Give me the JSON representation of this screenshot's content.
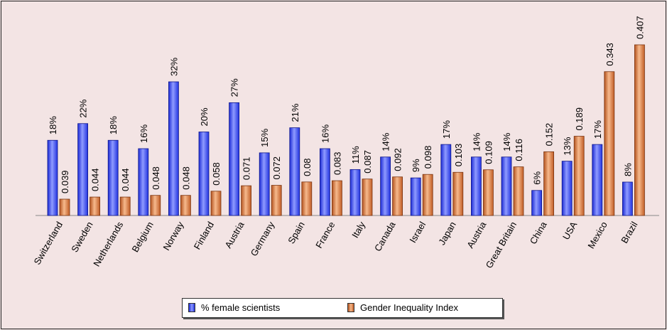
{
  "chart_data": {
    "type": "bar",
    "title": "",
    "xlabel": "",
    "ylabel": "",
    "categories": [
      "Switzerland",
      "Sweden",
      "Netherlands",
      "Belgium",
      "Norway",
      "Finland",
      "Austria",
      "Germany",
      "Spain",
      "France",
      "Italy",
      "Canada",
      "Israel",
      "Japan",
      "Austria",
      "Great Britain",
      "China",
      "USA",
      "Mexico",
      "Brazil"
    ],
    "series": [
      {
        "name": "% female scientists",
        "color": "#2f3ff0",
        "values": [
          18,
          22,
          18,
          16,
          32,
          20,
          27,
          15,
          21,
          16,
          11,
          14,
          9,
          17,
          14,
          14,
          6,
          13,
          17,
          8
        ],
        "labels": [
          "18%",
          "22%",
          "18%",
          "16%",
          "32%",
          "20%",
          "27%",
          "15%",
          "21%",
          "16%",
          "11%",
          "14%",
          "9%",
          "17%",
          "14%",
          "14%",
          "6%",
          "13%",
          "17%",
          "8%"
        ]
      },
      {
        "name": "Gender Inequality Index",
        "color": "#c8622a",
        "values": [
          0.039,
          0.044,
          0.044,
          0.048,
          0.048,
          0.058,
          0.071,
          0.072,
          0.08,
          0.083,
          0.087,
          0.092,
          0.098,
          0.103,
          0.109,
          0.116,
          0.152,
          0.189,
          0.343,
          0.407
        ],
        "labels": [
          "0.039",
          "0.044",
          "0.044",
          "0.048",
          "0.048",
          "0.058",
          "0.071",
          "0.072",
          "0.08",
          "0.083",
          "0.087",
          "0.092",
          "0.098",
          "0.103",
          "0.109",
          "0.116",
          "0.152",
          "0.189",
          "0.343",
          "0.407"
        ]
      }
    ],
    "legend_position": "bottom"
  }
}
